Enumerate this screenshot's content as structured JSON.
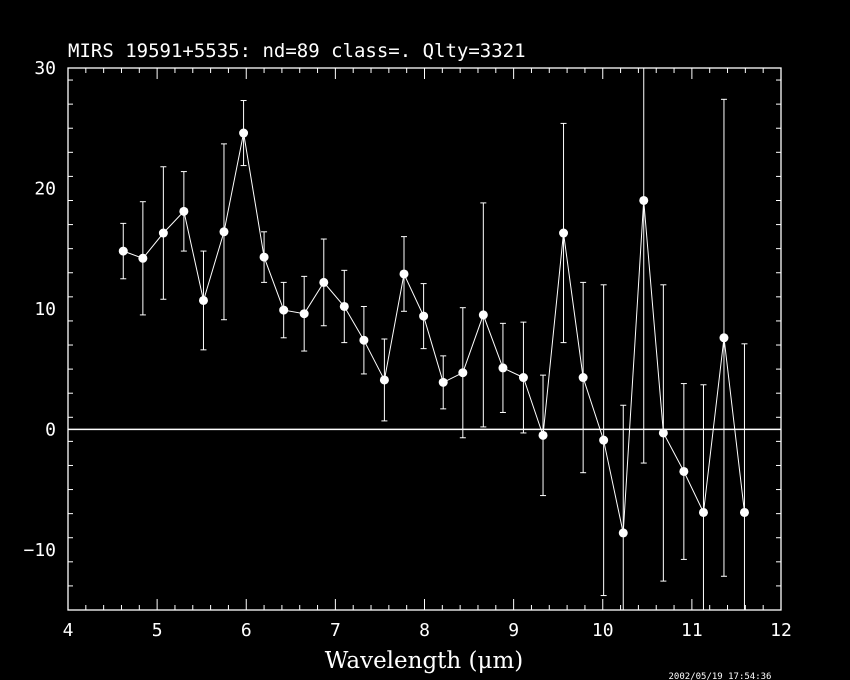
{
  "title": "MIRS 19591+5535:    nd=89   class=.   Qlty=3321",
  "timestamp": "2002/05/19 17:54:36",
  "chart_data": {
    "type": "scatter",
    "xlabel": "Wavelength (μm)",
    "ylabel": "",
    "xlim": [
      4,
      12
    ],
    "ylim": [
      -15,
      30
    ],
    "x_ticks": [
      "4",
      "5",
      "6",
      "7",
      "8",
      "9",
      "10",
      "11",
      "12"
    ],
    "y_ticks": [
      "−10",
      "0",
      "10",
      "20",
      "30"
    ],
    "zero_line": true,
    "connected": true,
    "series": [
      {
        "x": [
          4.62,
          4.84,
          5.07,
          5.3,
          5.52,
          5.75,
          5.97,
          6.2,
          6.42,
          6.65,
          6.87,
          7.1,
          7.32,
          7.55,
          7.77,
          7.99,
          8.21,
          8.43,
          8.66,
          8.88,
          9.11,
          9.33,
          9.56,
          9.78,
          10.01,
          10.23,
          10.46,
          10.68,
          10.91,
          11.13,
          11.36,
          11.59
        ],
        "y": [
          14.8,
          14.2,
          16.3,
          18.1,
          10.7,
          16.4,
          24.6,
          14.3,
          9.9,
          9.6,
          12.2,
          10.2,
          7.4,
          4.1,
          12.9,
          9.4,
          3.9,
          4.7,
          9.5,
          5.1,
          4.3,
          -0.5,
          16.3,
          4.3,
          -0.9,
          -8.6,
          19.0,
          -0.3,
          -3.5,
          -6.9,
          7.6,
          -6.9
        ],
        "err": [
          2.3,
          4.7,
          5.5,
          3.3,
          4.1,
          7.3,
          2.7,
          2.1,
          2.3,
          3.1,
          3.6,
          3.0,
          2.8,
          3.4,
          3.1,
          2.7,
          2.2,
          5.4,
          9.3,
          3.7,
          4.6,
          5.0,
          9.1,
          7.9,
          12.9,
          10.6,
          21.8,
          12.3,
          7.3,
          10.6,
          19.8,
          14.0
        ]
      }
    ]
  }
}
